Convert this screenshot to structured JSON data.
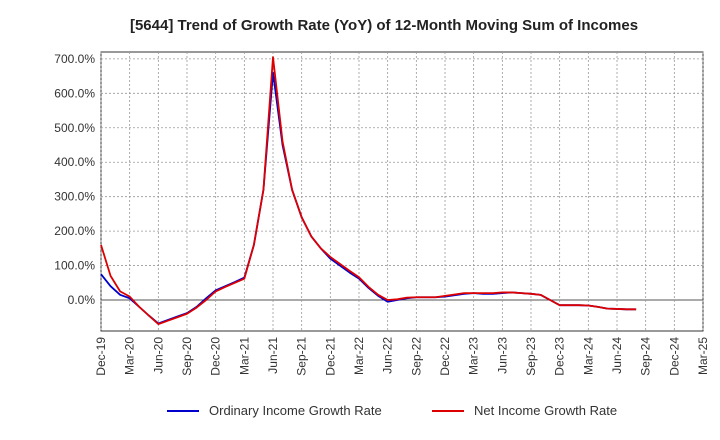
{
  "chart_data": {
    "type": "line",
    "title": "[5644]  Trend of Growth Rate (YoY) of 12-Month Moving Sum of Incomes",
    "xlabel": "",
    "ylabel": "",
    "y_unit": "%",
    "ylim": [
      -90,
      720
    ],
    "yticks": [
      0,
      100,
      200,
      300,
      400,
      500,
      600,
      700
    ],
    "ytick_labels": [
      "0.0%",
      "100.0%",
      "200.0%",
      "300.0%",
      "400.0%",
      "500.0%",
      "600.0%",
      "700.0%"
    ],
    "x_tick_labels": [
      "Dec-19",
      "Mar-20",
      "Jun-20",
      "Sep-20",
      "Dec-20",
      "Mar-21",
      "Jun-21",
      "Sep-21",
      "Dec-21",
      "Mar-22",
      "Jun-22",
      "Sep-22",
      "Dec-22",
      "Mar-23",
      "Jun-23",
      "Sep-23",
      "Dec-23",
      "Mar-24",
      "Jun-24",
      "Sep-24",
      "Dec-24",
      "Mar-25"
    ],
    "grid": true,
    "legend_position": "bottom",
    "series": [
      {
        "name": "Ordinary Income Growth Rate",
        "color": "#0000cc",
        "start_month_index": 0,
        "values": [
          75,
          40,
          15,
          5,
          -20,
          -45,
          -68,
          -58,
          -48,
          -38,
          -20,
          5,
          28,
          40,
          52,
          65,
          160,
          320,
          660,
          450,
          320,
          240,
          185,
          150,
          120,
          100,
          80,
          62,
          35,
          12,
          -5,
          0,
          5,
          8,
          8,
          8,
          10,
          14,
          18,
          20,
          18,
          18,
          20,
          22,
          20,
          18,
          15,
          0,
          -15,
          -15,
          -15,
          -16,
          -20,
          -25,
          -26,
          -27,
          -27
        ]
      },
      {
        "name": "Net Income Growth Rate",
        "color": "#dd0000",
        "start_month_index": 0,
        "values": [
          160,
          70,
          25,
          10,
          -20,
          -45,
          -70,
          -60,
          -50,
          -40,
          -22,
          0,
          25,
          38,
          50,
          62,
          160,
          320,
          705,
          460,
          320,
          240,
          185,
          150,
          125,
          105,
          85,
          66,
          38,
          15,
          0,
          2,
          7,
          8,
          8,
          8,
          12,
          16,
          20,
          20,
          20,
          20,
          22,
          22,
          20,
          18,
          15,
          0,
          -15,
          -15,
          -15,
          -16,
          -20,
          -25,
          -26,
          -27,
          -27
        ]
      }
    ]
  }
}
